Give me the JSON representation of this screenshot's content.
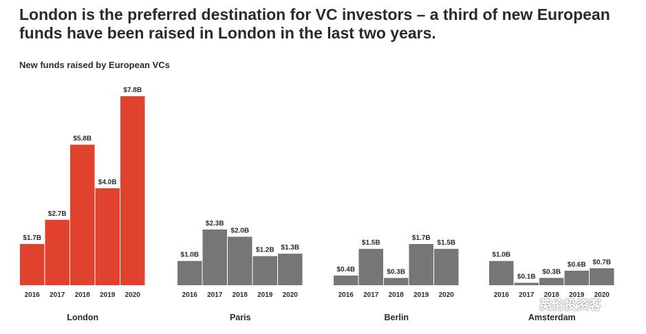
{
  "title": "London is the preferred destination for VC investors – a third of new European funds have been raised in London in the last two years.",
  "subtitle": "New funds raised by European VCs",
  "watermark": "英伦投资客",
  "colors": {
    "london": "#e0422e",
    "other": "#767676",
    "text": "#2a2a2a"
  },
  "chart_data": {
    "type": "bar",
    "title": "New funds raised by European VCs",
    "unit": "$B",
    "ylim": [
      0,
      7.8
    ],
    "groups": [
      {
        "city": "London",
        "years": [
          "2016",
          "2017",
          "2018",
          "2019",
          "2020"
        ],
        "values": [
          1.7,
          2.7,
          5.8,
          4.0,
          7.8
        ],
        "labels": [
          "$1.7B",
          "$2.7B",
          "$5.8B",
          "$4.0B",
          "$7.8B"
        ],
        "color": "#e0422e"
      },
      {
        "city": "Paris",
        "years": [
          "2016",
          "2017",
          "2018",
          "2019",
          "2020"
        ],
        "values": [
          1.0,
          2.3,
          2.0,
          1.2,
          1.3
        ],
        "labels": [
          "$1.0B",
          "$2.3B",
          "$2.0B",
          "$1.2B",
          "$1.3B"
        ],
        "color": "#767676"
      },
      {
        "city": "Berlin",
        "years": [
          "2016",
          "2017",
          "2018",
          "2019",
          "2020"
        ],
        "values": [
          0.4,
          1.5,
          0.3,
          1.7,
          1.5
        ],
        "labels": [
          "$0.4B",
          "$1.5B",
          "$0.3B",
          "$1.7B",
          "$1.5B"
        ],
        "color": "#767676"
      },
      {
        "city": "Amsterdam",
        "years": [
          "2016",
          "2017",
          "2018",
          "2019",
          "2020"
        ],
        "values": [
          1.0,
          0.1,
          0.3,
          0.6,
          0.7
        ],
        "labels": [
          "$1.0B",
          "$0.1B",
          "$0.3B",
          "$0.6B",
          "$0.7B"
        ],
        "color": "#767676"
      }
    ]
  }
}
